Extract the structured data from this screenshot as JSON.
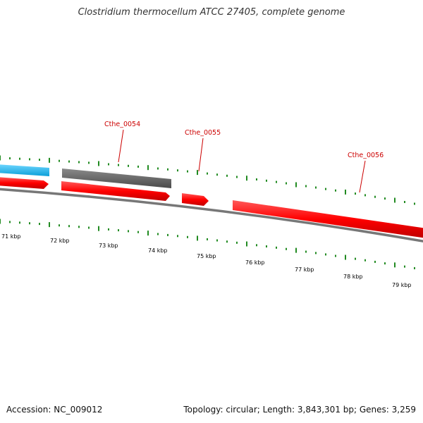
{
  "title": "Clostridium thermocellum ATCC 27405, complete genome",
  "footer": {
    "accession": "Accession: NC_009012",
    "summary": "Topology: circular; Length: 3,843,301 bp; Genes: 3,259"
  },
  "genes": [
    {
      "label": "Cthe_0054"
    },
    {
      "label": "Cthe_0055"
    },
    {
      "label": "Cthe_0056"
    }
  ],
  "scale_labels": [
    "71 kbp",
    "72 kbp",
    "73 kbp",
    "74 kbp",
    "75 kbp",
    "76 kbp",
    "77 kbp",
    "78 kbp",
    "79 kbp"
  ],
  "colors": {
    "forward_gene": "#ff0000",
    "reverse_gene_blue": "#1ab8f0",
    "reverse_gene_gray": "#666666",
    "backbone": "#777777",
    "tick": "#228b22",
    "label": "#cc0000"
  }
}
